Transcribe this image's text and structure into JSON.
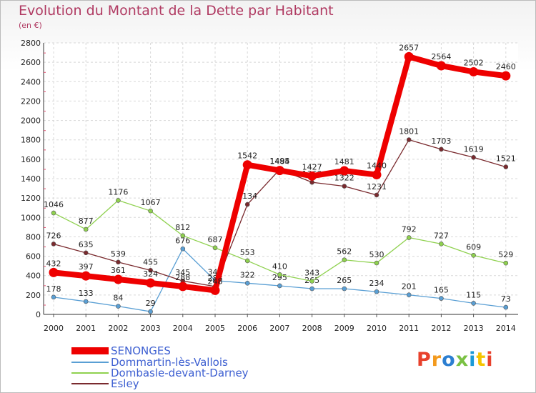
{
  "header": {
    "title": "Evolution du Montant de la Dette par Habitant",
    "subtitle": "(en €)"
  },
  "logo": {
    "text": "Proxiti",
    "colors": [
      "#e8412c",
      "#f39a1e",
      "#2c7fd1",
      "#7ac143",
      "#1a9ad7",
      "#f5c400",
      "#e8412c"
    ]
  },
  "chart_data": {
    "type": "line",
    "x": [
      "2000",
      "2001",
      "2002",
      "2003",
      "2004",
      "2005",
      "2006",
      "2007",
      "2008",
      "2009",
      "2010",
      "2011",
      "2012",
      "2013",
      "2014"
    ],
    "ylim": [
      0,
      2800
    ],
    "yticks": [
      "0",
      "200",
      "400",
      "600",
      "800",
      "1000",
      "1200",
      "1400",
      "1600",
      "1800",
      "2000",
      "2200",
      "2400",
      "2600",
      "2800"
    ],
    "grid": true,
    "legend_placement": "bottom-left",
    "series": [
      {
        "name": "Dommartin-lès-Vallois",
        "color": "#5a9fd4",
        "values": [
          178,
          133,
          84,
          29,
          676,
          349,
          322,
          295,
          265,
          265,
          234,
          201,
          165,
          115,
          73
        ],
        "labels": [
          "178",
          "133",
          "84",
          "29",
          "676",
          "349",
          "322",
          "295",
          "265",
          "265",
          "234",
          "201",
          "165",
          "115",
          "73"
        ]
      },
      {
        "name": "Dombasle-devant-Darney",
        "color": "#8fd14f",
        "values": [
          1046,
          877,
          1176,
          1067,
          812,
          687,
          553,
          410,
          343,
          562,
          530,
          792,
          727,
          609,
          529
        ],
        "labels": [
          "1046",
          "877",
          "1176",
          "1067",
          "812",
          "687",
          "553",
          "410",
          "343",
          "562",
          "530",
          "792",
          "727",
          "609",
          "529"
        ]
      },
      {
        "name": "Esley",
        "color": "#7a2a2e",
        "values": [
          726,
          635,
          539,
          455,
          345,
          288,
          1134,
          1495,
          1362,
          1322,
          1231,
          1801,
          1703,
          1619,
          1521
        ],
        "labels": [
          "726",
          "635",
          "539",
          "455",
          "345",
          "288",
          "1134",
          "1495",
          "1362",
          "1322",
          "1231",
          "1801",
          "1703",
          "1619",
          "1521"
        ]
      },
      {
        "name": "SENONGES",
        "color": "#ee0000",
        "values": [
          432,
          397,
          361,
          324,
          288,
          248,
          1542,
          1484,
          1427,
          1481,
          1440,
          2657,
          2564,
          2502,
          2460
        ],
        "labels": [
          "432",
          "397",
          "361",
          "324",
          "288",
          "248",
          "1542",
          "1484",
          "1427",
          "1481",
          "1440",
          "2657",
          "2564",
          "2502",
          "2460"
        ]
      }
    ],
    "legend": [
      {
        "name": "SENONGES",
        "color": "#ee0000",
        "thick": true
      },
      {
        "name": "Dommartin-lès-Vallois",
        "color": "#5a9fd4",
        "thick": false
      },
      {
        "name": "Dombasle-devant-Darney",
        "color": "#8fd14f",
        "thick": false
      },
      {
        "name": "Esley",
        "color": "#7a2a2e",
        "thick": false
      }
    ]
  }
}
